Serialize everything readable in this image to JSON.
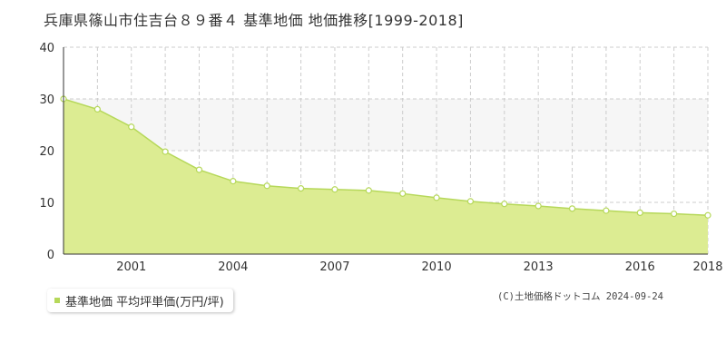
{
  "title": "兵庫県篠山市住吉台８９番４  基準地価  地価推移[1999-2018]",
  "legend_label": "基準地価 平均坪単価(万円/坪)",
  "copyright": "(C)土地価格ドットコム 2024-09-24",
  "colors": {
    "area_fill": "#dcec92",
    "line": "#b6d85a",
    "marker_fill": "#ffffff",
    "band": "#f6f6f6",
    "grid": "#cccccc"
  },
  "chart_data": {
    "type": "area",
    "x": [
      1999,
      2000,
      2001,
      2002,
      2003,
      2004,
      2005,
      2006,
      2007,
      2008,
      2009,
      2010,
      2011,
      2012,
      2013,
      2014,
      2015,
      2016,
      2017,
      2018
    ],
    "series": [
      {
        "name": "基準地価 平均坪単価(万円/坪)",
        "values": [
          30.0,
          28.0,
          24.6,
          19.8,
          16.3,
          14.1,
          13.2,
          12.7,
          12.5,
          12.3,
          11.7,
          10.9,
          10.2,
          9.7,
          9.3,
          8.8,
          8.4,
          8.0,
          7.8,
          7.5
        ]
      }
    ],
    "xlim": [
      1999,
      2018
    ],
    "ylim": [
      0,
      40
    ],
    "yticks": [
      0,
      10,
      20,
      30,
      40
    ],
    "xtick_labels": [
      2001,
      2004,
      2007,
      2010,
      2013,
      2016,
      2018
    ],
    "grid": true,
    "legend_position": "bottom-left"
  }
}
